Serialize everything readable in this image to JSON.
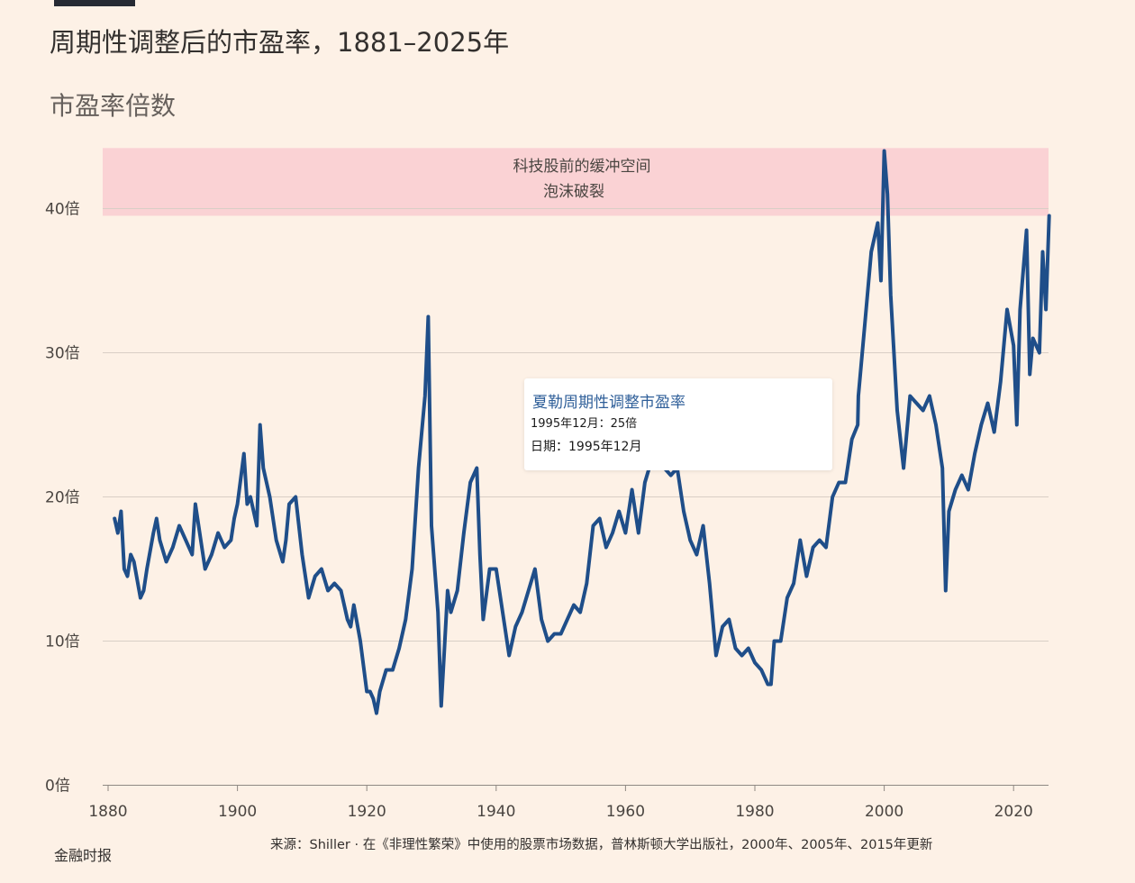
{
  "header": {
    "title": "周期性调整后的市盈率，1881–2025年",
    "subtitle": "市盈率倍数"
  },
  "tooltip": {
    "title": "夏勒周期性调整市盈率",
    "value": "1995年12月：25倍",
    "date": "日期：1995年12月"
  },
  "footer": {
    "source": "来源：Shiller · 在《非理性繁荣》中使用的股票市场数据，普林斯顿大学出版社，2000年、2005年、2015年更新",
    "publisher": "金融时报"
  },
  "colors": {
    "background": "#fdf1e6",
    "line": "#1f4e89",
    "band": "#fad2d4",
    "grid": "#d9cfc6"
  },
  "chart_data": {
    "type": "line",
    "title": "周期性调整后的市盈率，1881–2025年",
    "ylabel": "市盈率倍数",
    "xlabel": "",
    "xlim": [
      1880,
      2026
    ],
    "ylim": [
      0,
      45
    ],
    "x_ticks": [
      "1880",
      "1900",
      "1920",
      "1940",
      "1960",
      "1980",
      "2000",
      "2020"
    ],
    "y_ticks": [
      "0倍",
      "10倍",
      "20倍",
      "30倍",
      "40倍"
    ],
    "y_tick_values": [
      0,
      10,
      20,
      30,
      40
    ],
    "grid": "horizontal",
    "band": {
      "from": 39.5,
      "to": 44.2,
      "label_line1": "科技股前的缓冲空间",
      "label_line2": "泡沫破裂"
    },
    "highlight_point": {
      "x": 1995.9,
      "y": 25
    },
    "series": [
      {
        "name": "夏勒周期性调整市盈率",
        "x": [
          1881,
          1881.5,
          1882,
          1882.5,
          1883,
          1883.5,
          1884,
          1885,
          1885.5,
          1886,
          1887,
          1887.5,
          1888,
          1889,
          1890,
          1891,
          1892,
          1893,
          1893.5,
          1894,
          1895,
          1896,
          1897,
          1898,
          1899,
          1899.5,
          1900,
          1901,
          1901.5,
          1902,
          1903,
          1903.5,
          1904,
          1905,
          1906,
          1907,
          1907.5,
          1908,
          1909,
          1910,
          1911,
          1912,
          1913,
          1914,
          1915,
          1916,
          1917,
          1917.5,
          1918,
          1919,
          1920,
          1920.5,
          1921,
          1921.5,
          1922,
          1923,
          1924,
          1925,
          1926,
          1927,
          1928,
          1929,
          1929.5,
          1930,
          1931,
          1931.5,
          1932,
          1932.5,
          1933,
          1934,
          1935,
          1936,
          1937,
          1937.5,
          1938,
          1939,
          1940,
          1941,
          1942,
          1943,
          1944,
          1945,
          1946,
          1947,
          1948,
          1949,
          1950,
          1951,
          1952,
          1953,
          1954,
          1955,
          1956,
          1957,
          1958,
          1959,
          1960,
          1961,
          1962,
          1963,
          1964,
          1965,
          1966,
          1967,
          1968,
          1969,
          1970,
          1971,
          1972,
          1973,
          1974,
          1975,
          1976,
          1977,
          1978,
          1979,
          1980,
          1981,
          1982,
          1982.5,
          1983,
          1984,
          1985,
          1986,
          1987,
          1988,
          1989,
          1990,
          1991,
          1992,
          1993,
          1994,
          1995,
          1995.9,
          1996,
          1997,
          1998,
          1999,
          1999.5,
          2000,
          2000.5,
          2001,
          2002,
          2003,
          2004,
          2005,
          2006,
          2007,
          2008,
          2009,
          2009.5,
          2010,
          2011,
          2012,
          2013,
          2014,
          2015,
          2016,
          2017,
          2018,
          2019,
          2020,
          2020.5,
          2021,
          2022,
          2022.5,
          2023,
          2024,
          2024.5,
          2025,
          2025.5
        ],
        "y": [
          18.5,
          17.5,
          19,
          15,
          14.5,
          16,
          15.5,
          13,
          13.5,
          15,
          17.5,
          18.5,
          17,
          15.5,
          16.5,
          18,
          17,
          16,
          19.5,
          18,
          15,
          16,
          17.5,
          16.5,
          17,
          18.5,
          19.5,
          23,
          19.5,
          20,
          18,
          25,
          22,
          20,
          17,
          15.5,
          17,
          19.5,
          20,
          16,
          13,
          14.5,
          15,
          13.5,
          14,
          13.5,
          11.5,
          11,
          12.5,
          10,
          6.5,
          6.5,
          6,
          5,
          6.5,
          8,
          8,
          9.5,
          11.5,
          15,
          22,
          27,
          32.5,
          18,
          12,
          5.5,
          9.5,
          13.5,
          12,
          13.5,
          17.5,
          21,
          22,
          16,
          11.5,
          15,
          15,
          12,
          9,
          11,
          12,
          13.5,
          15,
          11.5,
          10,
          10.5,
          10.5,
          11.5,
          12.5,
          12,
          14,
          18,
          18.5,
          16.5,
          17.5,
          19,
          17.5,
          20.5,
          17.5,
          21,
          22.5,
          23.5,
          22,
          21.5,
          22,
          19,
          17,
          16,
          18,
          14,
          9,
          11,
          11.5,
          9.5,
          9,
          9.5,
          8.5,
          8,
          7,
          7,
          10,
          10,
          13,
          14,
          17,
          14.5,
          16.5,
          17,
          16.5,
          20,
          21,
          21,
          24,
          25,
          27,
          32,
          37,
          39,
          35,
          44,
          41,
          34,
          26,
          22,
          27,
          26.5,
          26,
          27,
          25,
          22,
          13.5,
          19,
          20.5,
          21.5,
          20.5,
          23,
          25,
          26.5,
          24.5,
          28,
          33,
          30.5,
          25,
          33,
          38.5,
          28.5,
          31,
          30,
          37,
          33,
          39.5
        ]
      }
    ]
  }
}
